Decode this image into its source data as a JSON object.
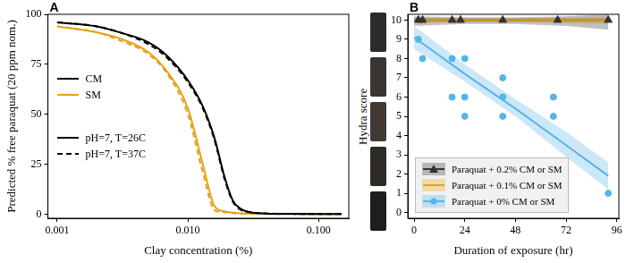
{
  "chart_data": [
    {
      "panel": "A",
      "type": "line",
      "x_label": "Clay concentration (%)",
      "y_label": "Predicted % free paraquat (20 ppm nom.)",
      "log": "x",
      "grid": false,
      "legend": "left",
      "xlim": [
        0.00085,
        0.17
      ],
      "xticks": [
        {
          "value": 0.001,
          "label": "0.001"
        },
        {
          "value": 0.01,
          "label": "0.010"
        },
        {
          "value": 0.1,
          "label": "0.100"
        }
      ],
      "ylim": [
        -2,
        100
      ],
      "yticks": [
        0,
        25,
        50,
        75,
        100
      ],
      "x": [
        0.001,
        0.002,
        0.003,
        0.005,
        0.007,
        0.01,
        0.013,
        0.016,
        0.019,
        0.022,
        0.025,
        0.03,
        0.04,
        0.06,
        0.1,
        0.15
      ],
      "series": [
        {
          "name": "CM",
          "condition": "pH=7, T=26C",
          "color": "#000000",
          "line_style": "solid",
          "values": [
            96,
            94,
            91,
            86,
            79,
            67,
            54,
            38,
            19,
            7,
            3,
            1,
            0.4,
            0.2,
            0.1,
            0.1
          ]
        },
        {
          "name": "CM",
          "condition": "pH=7, T=37C",
          "color": "#000000",
          "line_style": "dashed",
          "values": [
            96,
            94,
            91,
            85,
            78,
            66,
            53,
            37,
            18,
            6.5,
            2.5,
            1,
            0.4,
            0.2,
            0.1,
            0.1
          ]
        },
        {
          "name": "SM",
          "condition": "pH=7, T=26C",
          "color": "#e6a117",
          "line_style": "solid",
          "values": [
            94,
            91,
            88,
            81,
            71,
            53,
            25,
            4,
            1.5,
            0.8,
            0.5,
            0.3,
            0.2,
            0.1,
            0.1,
            0.1
          ]
        },
        {
          "name": "SM",
          "condition": "pH=7, T=37C",
          "color": "#e6a117",
          "line_style": "dashed",
          "values": [
            94,
            91,
            87,
            80,
            70,
            50,
            21,
            2,
            1,
            0.6,
            0.4,
            0.3,
            0.2,
            0.1,
            0.1,
            0.1
          ]
        }
      ]
    },
    {
      "panel": "B",
      "type": "scatter",
      "x_label": "Duration of exposure (hr)",
      "y_label": "Hydra score",
      "grid": false,
      "legend": "bottom left",
      "xlim": [
        -3,
        97
      ],
      "xticks": [
        0,
        24,
        48,
        72,
        96
      ],
      "ylim": [
        -0.3,
        10.3
      ],
      "yticks": [
        0,
        1,
        2,
        3,
        4,
        5,
        6,
        7,
        8,
        9,
        10
      ],
      "series": [
        {
          "name": "Paraquat + 0.2% CM or SM",
          "color": "#333333",
          "marker": "triangle",
          "x": [
            2,
            4,
            18,
            22,
            42,
            68,
            92
          ],
          "values": [
            10,
            10,
            10,
            10,
            10,
            10,
            10
          ],
          "fit": {
            "x": [
              0,
              24,
              48,
              72,
              92
            ],
            "values": [
              10,
              10,
              10,
              10,
              10
            ],
            "lower": [
              9.7,
              9.8,
              9.8,
              9.7,
              9.5
            ],
            "upper": [
              10.2,
              10.15,
              10.15,
              10.2,
              10.3
            ]
          }
        },
        {
          "name": "Paraquat + 0.1% CM or SM",
          "color": "#e6a117",
          "marker": "none",
          "fit": {
            "x": [
              0,
              24,
              48,
              72,
              92
            ],
            "values": [
              10,
              10,
              10,
              10,
              10
            ],
            "lower": [
              9.85,
              9.9,
              9.9,
              9.85,
              9.8
            ],
            "upper": [
              10.15,
              10.1,
              10.1,
              10.15,
              10.2
            ]
          }
        },
        {
          "name": "Paraquat + 0% CM or SM",
          "color": "#56b4e9",
          "marker": "circle",
          "x": [
            2,
            4,
            18,
            18,
            24,
            24,
            24,
            42,
            42,
            42,
            66,
            66,
            92
          ],
          "values": [
            9,
            8,
            8,
            6,
            8,
            6,
            5,
            7,
            6,
            5,
            6,
            5,
            1
          ],
          "fit": {
            "x": [
              0,
              24,
              48,
              72,
              92
            ],
            "values": [
              9.1,
              7.2,
              5.4,
              3.5,
              1.9
            ],
            "lower": [
              8.5,
              6.8,
              5.0,
              2.9,
              1.2
            ],
            "upper": [
              9.7,
              7.7,
              5.9,
              4.2,
              2.6
            ]
          }
        }
      ]
    }
  ]
}
